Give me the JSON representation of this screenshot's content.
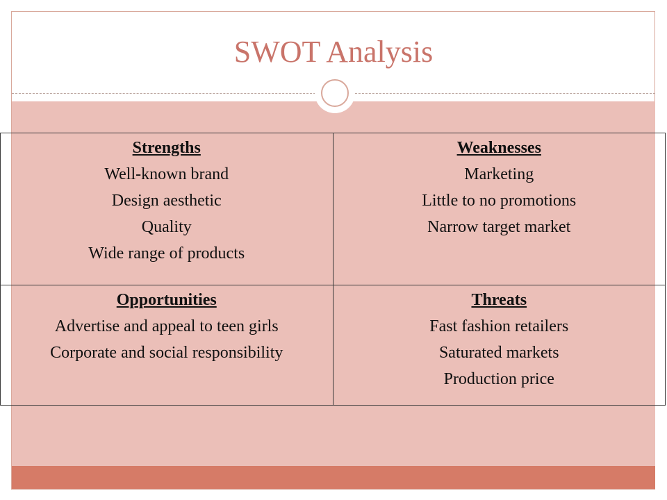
{
  "slide": {
    "title": "SWOT Analysis"
  },
  "swot": {
    "strengths": {
      "heading": "Strengths",
      "items": [
        "Well-known brand",
        "Design aesthetic",
        "Quality",
        "Wide range of products"
      ]
    },
    "weaknesses": {
      "heading": "Weaknesses",
      "items": [
        "Marketing",
        "Little to no promotions",
        "Narrow target market"
      ]
    },
    "opportunities": {
      "heading": "Opportunities",
      "items": [
        "Advertise and appeal to teen girls",
        "Corporate and social responsibility"
      ]
    },
    "threats": {
      "heading": "Threats",
      "items": [
        "Fast fashion retailers",
        "Saturated markets",
        "Production price"
      ]
    }
  },
  "colors": {
    "title": "#c9746a",
    "body_fill": "#ebbfb8",
    "footer_bar": "#d67b67",
    "frame": "#d9a89b"
  }
}
